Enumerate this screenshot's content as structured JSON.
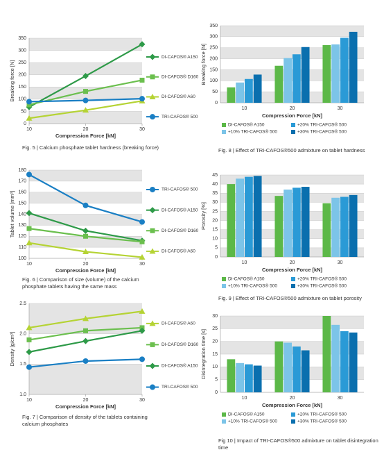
{
  "chart_data": [
    {
      "type": "line",
      "caption": "Fig. 5 | Calcium phosphate tablet hardness (breaking force)",
      "xlabel": "Compression Force [kN]",
      "ylabel": "Breaking force [N]",
      "x": [
        10,
        20,
        30
      ],
      "xlim": [
        10,
        30
      ],
      "xticks": [
        10,
        20,
        30
      ],
      "ylim": [
        0,
        350
      ],
      "yticks": [
        0,
        50,
        100,
        150,
        200,
        250,
        300,
        350
      ],
      "grid": true,
      "legend": "right",
      "series": [
        {
          "name": "DI-CAFOS® A150",
          "color": "#2e9a48",
          "marker": "diamond",
          "values": [
            68,
            195,
            325
          ]
        },
        {
          "name": "DI-CAFOS® D160",
          "color": "#6bbf4e",
          "marker": "square",
          "values": [
            77,
            132,
            178
          ]
        },
        {
          "name": "DI-CAFOS® A60",
          "color": "#b5d334",
          "marker": "triangle",
          "values": [
            22,
            55,
            93
          ]
        },
        {
          "name": "TRI-CAFOS® 500",
          "color": "#1a7fc4",
          "marker": "circle",
          "values": [
            90,
            95,
            102
          ]
        }
      ]
    },
    {
      "type": "bar",
      "caption": "Fig. 8 | Effect of TRI-CAFOS®500 admixture on tablet hardness",
      "xlabel": "Compression Force [kN]",
      "ylabel": "Breaking force [N]",
      "categories": [
        "10",
        "20",
        "30"
      ],
      "ylim": [
        0,
        350
      ],
      "yticks": [
        0,
        50,
        100,
        150,
        200,
        250,
        300,
        350
      ],
      "grid": true,
      "legend": "bottom",
      "series": [
        {
          "name": "DI-CAFOS® A150",
          "color": "#5cb848",
          "values": [
            70,
            168,
            262
          ]
        },
        {
          "name": "+10% TRI-CAFOS® 500",
          "color": "#7cc4e8",
          "values": [
            92,
            203,
            265
          ]
        },
        {
          "name": "+20% TRI-CAFOS® 500",
          "color": "#2a9ad6",
          "values": [
            108,
            220,
            295
          ]
        },
        {
          "name": "+30% TRI-CAFOS® 500",
          "color": "#0a6fae",
          "values": [
            128,
            253,
            322
          ]
        }
      ]
    },
    {
      "type": "line",
      "caption": "Fig. 6 | Comparison of size (volume) of the calcium phosphate tablets having the same mass",
      "xlabel": "Compression Force [kN]",
      "ylabel": "Tablet volume [mm³]",
      "x": [
        10,
        20,
        30
      ],
      "xlim": [
        10,
        30
      ],
      "xticks": [
        10,
        20,
        30
      ],
      "ylim": [
        100,
        180
      ],
      "yticks": [
        100,
        110,
        120,
        130,
        140,
        150,
        160,
        170,
        180
      ],
      "grid": true,
      "legend": "right",
      "series": [
        {
          "name": "TRI-CAFOS® 500",
          "color": "#1a7fc4",
          "marker": "circle",
          "values": [
            176,
            148,
            133
          ]
        },
        {
          "name": "DI-CAFOS® A150",
          "color": "#2e9a48",
          "marker": "diamond",
          "values": [
            141,
            125,
            116
          ]
        },
        {
          "name": "DI-CAFOS® D160",
          "color": "#6bbf4e",
          "marker": "square",
          "values": [
            127,
            120,
            115
          ]
        },
        {
          "name": "DI-CAFOS® A60",
          "color": "#b5d334",
          "marker": "triangle",
          "values": [
            114,
            106,
            101
          ]
        }
      ]
    },
    {
      "type": "bar",
      "caption": "Fig. 9 | Effect of TRI-CAFOS®500 admixture on tablet porosity",
      "xlabel": "Compression Force [kN]",
      "ylabel": "Porosity [%]",
      "categories": [
        "10",
        "20",
        "30"
      ],
      "ylim": [
        0,
        45
      ],
      "yticks": [
        0,
        5,
        10,
        15,
        20,
        25,
        30,
        35,
        40,
        45
      ],
      "grid": true,
      "legend": "bottom",
      "series": [
        {
          "name": "DI-CAFOS® A150",
          "color": "#5cb848",
          "values": [
            40,
            33.5,
            29.5
          ]
        },
        {
          "name": "+10% TRI-CAFOS® 500",
          "color": "#7cc4e8",
          "values": [
            43,
            37,
            32.5
          ]
        },
        {
          "name": "+20% TRI-CAFOS® 500",
          "color": "#2a9ad6",
          "values": [
            44,
            38,
            33
          ]
        },
        {
          "name": "+30% TRI-CAFOS® 500",
          "color": "#0a6fae",
          "values": [
            44.5,
            38.5,
            34
          ]
        }
      ]
    },
    {
      "type": "line",
      "caption": "Fig. 7 | Comparison of density of the tablets containing calcium phosphates",
      "xlabel": "Compression Force [kN]",
      "ylabel": "Density [g/cm³]",
      "x": [
        10,
        20,
        30
      ],
      "xlim": [
        10,
        30
      ],
      "xticks": [
        10,
        20,
        30
      ],
      "ylim": [
        1,
        2.5
      ],
      "yticks": [
        {
          "value": 1,
          "label": "1.0"
        },
        1.5,
        {
          "value": 2,
          "label": "2.0"
        },
        2.5
      ],
      "grid": true,
      "legend": "right",
      "series": [
        {
          "name": "DI-CAFOS® A60",
          "color": "#b5d334",
          "marker": "triangle",
          "values": [
            2.1,
            2.25,
            2.37
          ]
        },
        {
          "name": "DI-CAFOS® D160",
          "color": "#6bbf4e",
          "marker": "square",
          "values": [
            1.9,
            2.05,
            2.1
          ]
        },
        {
          "name": "DI-CAFOS® A150",
          "color": "#2e9a48",
          "marker": "diamond",
          "values": [
            1.7,
            1.88,
            2.05
          ]
        },
        {
          "name": "TRI-CAFOS® 500",
          "color": "#1a7fc4",
          "marker": "circle",
          "values": [
            1.45,
            1.55,
            1.58
          ]
        }
      ]
    },
    {
      "type": "bar",
      "caption": "Fig 10 | Impact of TRI-CAFOS®500 admixture on tablet disintegration time",
      "xlabel": "Compression Force [kN]",
      "ylabel": "Disintegration time [s]",
      "categories": [
        "10",
        "20",
        "30"
      ],
      "ylim": [
        0,
        30
      ],
      "yticks": [
        0,
        5,
        10,
        15,
        20,
        25,
        30
      ],
      "grid": true,
      "legend": "bottom",
      "series": [
        {
          "name": "DI-CAFOS® A150",
          "color": "#5cb848",
          "values": [
            13,
            20,
            30
          ]
        },
        {
          "name": "+10% TRI-CAFOS® 500",
          "color": "#7cc4e8",
          "values": [
            11.5,
            19.5,
            26.5
          ]
        },
        {
          "name": "+20% TRI-CAFOS® 500",
          "color": "#2a9ad6",
          "values": [
            11,
            18,
            24
          ]
        },
        {
          "name": "+30% TRI-CAFOS® 500",
          "color": "#0a6fae",
          "values": [
            10.5,
            16.5,
            23.5
          ]
        }
      ]
    }
  ]
}
